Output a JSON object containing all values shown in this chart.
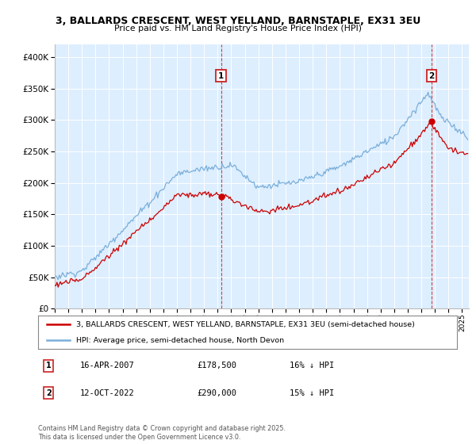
{
  "title1": "3, BALLARDS CRESCENT, WEST YELLAND, BARNSTAPLE, EX31 3EU",
  "title2": "Price paid vs. HM Land Registry's House Price Index (HPI)",
  "legend_line1": "3, BALLARDS CRESCENT, WEST YELLAND, BARNSTAPLE, EX31 3EU (semi-detached house)",
  "legend_line2": "HPI: Average price, semi-detached house, North Devon",
  "footnote": "Contains HM Land Registry data © Crown copyright and database right 2025.\nThis data is licensed under the Open Government Licence v3.0.",
  "marker1": {
    "label": "1",
    "date": "16-APR-2007",
    "price": 178500,
    "note": "16% ↓ HPI",
    "year": 2007.29
  },
  "marker2": {
    "label": "2",
    "date": "12-OCT-2022",
    "price": 290000,
    "note": "15% ↓ HPI",
    "year": 2022.79
  },
  "red_color": "#cc0000",
  "blue_color": "#7aafda",
  "marker_box_color": "#cc2222",
  "plot_bg": "#ddeeff",
  "ylim_max": 420000,
  "ylim_min": 0,
  "xmin": 1995,
  "xmax": 2025.5
}
